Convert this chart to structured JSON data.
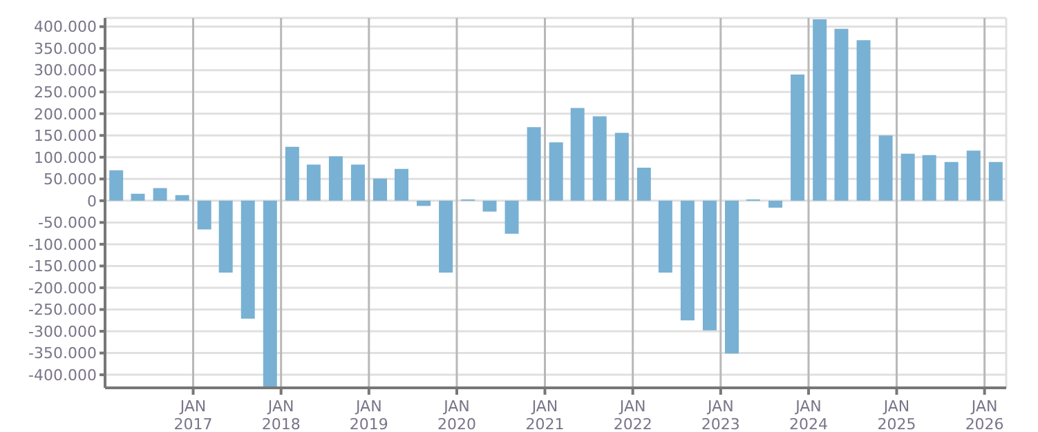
{
  "chart_data": {
    "type": "bar",
    "color": "#78b1d3",
    "x": [
      "2016-02-15",
      "2016-05-15",
      "2016-08-15",
      "2016-11-15",
      "2017-02-15",
      "2017-05-15",
      "2017-08-15",
      "2017-11-15",
      "2018-02-15",
      "2018-05-15",
      "2018-08-15",
      "2018-11-15",
      "2019-02-15",
      "2019-05-15",
      "2019-08-15",
      "2019-11-15",
      "2020-02-15",
      "2020-05-15",
      "2020-08-15",
      "2020-11-15",
      "2021-02-15",
      "2021-05-15",
      "2021-08-15",
      "2021-11-15",
      "2022-02-15",
      "2022-05-15",
      "2022-08-15",
      "2022-11-15",
      "2023-02-15",
      "2023-05-15",
      "2023-08-15",
      "2023-11-15",
      "2024-02-15",
      "2024-05-15",
      "2024-08-15",
      "2024-11-15",
      "2025-02-15",
      "2025-05-15",
      "2025-08-15",
      "2025-11-15",
      "2026-02-15"
    ],
    "values": [
      70000,
      16000,
      29000,
      13000,
      -66000,
      -165000,
      -271000,
      -430000,
      124000,
      83000,
      102000,
      83000,
      51000,
      73000,
      -12000,
      -165000,
      3000,
      -25000,
      -76000,
      169000,
      134000,
      213000,
      194000,
      156000,
      76000,
      -165000,
      -275000,
      -298000,
      -351000,
      3000,
      -16000,
      290000,
      417000,
      395000,
      369000,
      150000,
      108000,
      105000,
      89000,
      115000,
      89000
    ],
    "xlim": [
      "2016-01-01",
      "2026-04-01"
    ],
    "xticks": [
      {
        "value": "2017-01-01",
        "label": "JAN 2017"
      },
      {
        "value": "2018-01-01",
        "label": "JAN 2018"
      },
      {
        "value": "2019-01-01",
        "label": "JAN 2019"
      },
      {
        "value": "2020-01-01",
        "label": "JAN 2020"
      },
      {
        "value": "2021-01-01",
        "label": "JAN 2021"
      },
      {
        "value": "2022-01-01",
        "label": "JAN 2022"
      },
      {
        "value": "2023-01-01",
        "label": "JAN 2023"
      },
      {
        "value": "2024-01-01",
        "label": "JAN 2024"
      },
      {
        "value": "2025-01-01",
        "label": "JAN 2025"
      },
      {
        "value": "2026-01-01",
        "label": "JAN 2026"
      }
    ],
    "ylim": [
      -430000,
      420000
    ],
    "yticks": [
      {
        "value": -400000,
        "label": "-400.000"
      },
      {
        "value": -350000,
        "label": "-350.000"
      },
      {
        "value": -300000,
        "label": "-300.000"
      },
      {
        "value": -250000,
        "label": "-250.000"
      },
      {
        "value": -200000,
        "label": "-200.000"
      },
      {
        "value": -150000,
        "label": "-150.000"
      },
      {
        "value": -100000,
        "label": "-100.000"
      },
      {
        "value": -50000,
        "label": "-50.000"
      },
      {
        "value": 0,
        "label": "0"
      },
      {
        "value": 50000,
        "label": "50.000"
      },
      {
        "value": 100000,
        "label": "100.000"
      },
      {
        "value": 150000,
        "label": "150.000"
      },
      {
        "value": 200000,
        "label": "200.000"
      },
      {
        "value": 250000,
        "label": "250.000"
      },
      {
        "value": 300000,
        "label": "300.000"
      },
      {
        "value": 350000,
        "label": "350.000"
      },
      {
        "value": 400000,
        "label": "400.000"
      }
    ],
    "grid": true,
    "legend": false
  }
}
